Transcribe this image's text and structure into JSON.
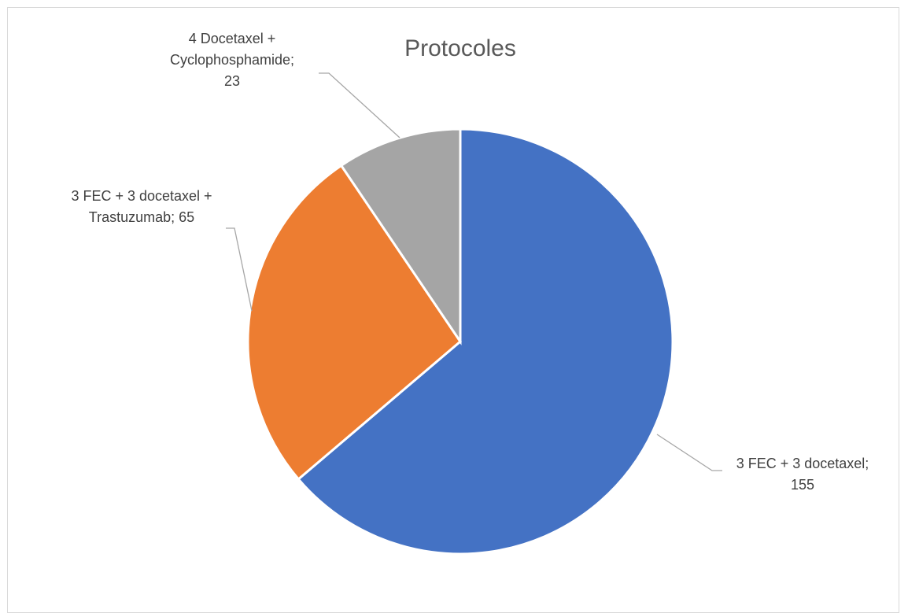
{
  "chart_data": {
    "type": "pie",
    "title": "Protocoles",
    "categories": [
      "3 FEC + 3 docetaxel",
      "3 FEC + 3 docetaxel + Trastuzumab",
      "4 Docetaxel + Cyclophosphamide"
    ],
    "values": [
      155,
      65,
      23
    ],
    "colors": [
      "#4472c4",
      "#ed7d31",
      "#a5a5a5"
    ],
    "start_angle_deg": 0,
    "direction": "clockwise",
    "legend": "none",
    "data_labels": [
      {
        "lines": [
          "3 FEC + 3 docetaxel;",
          "155"
        ]
      },
      {
        "lines": [
          "3 FEC + 3 docetaxel +",
          "Trastuzumab; 65"
        ]
      },
      {
        "lines": [
          "4 Docetaxel +",
          "Cyclophosphamide;",
          "23"
        ]
      }
    ]
  }
}
